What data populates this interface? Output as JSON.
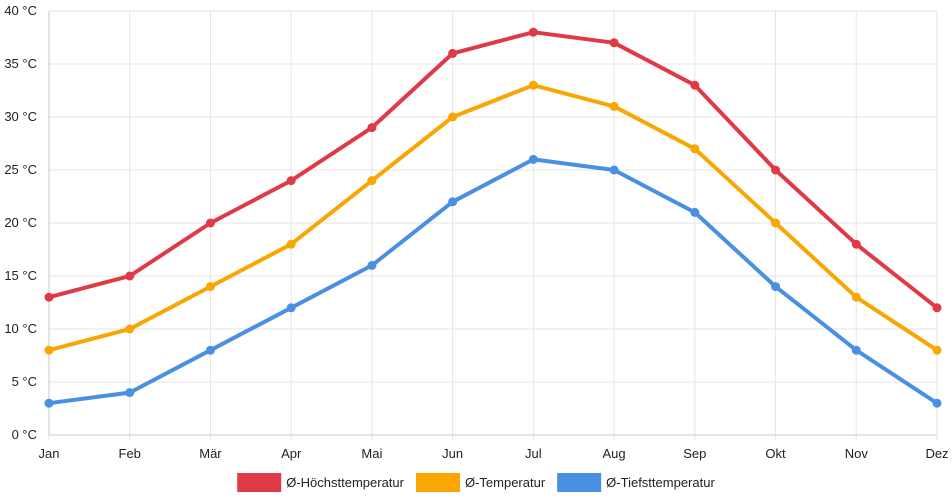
{
  "chart_data": {
    "type": "line",
    "title": "",
    "xlabel": "",
    "ylabel": "",
    "categories": [
      "Jan",
      "Feb",
      "Mär",
      "Apr",
      "Mai",
      "Jun",
      "Jul",
      "Aug",
      "Sep",
      "Okt",
      "Nov",
      "Dez"
    ],
    "ylim": [
      0,
      40
    ],
    "ytick_step": 5,
    "ytick_labels": [
      "0 °C",
      "5 °C",
      "10 °C",
      "15 °C",
      "20 °C",
      "25 °C",
      "30 °C",
      "35 °C",
      "40 °C"
    ],
    "grid": true,
    "legend_position": "bottom-center",
    "series": [
      {
        "name": "Ø-Höchsttemperatur",
        "color": "#e03a47",
        "values": [
          13,
          15,
          20,
          24,
          29,
          36,
          38,
          37,
          33,
          25,
          18,
          12
        ]
      },
      {
        "name": "Ø-Temperatur",
        "color": "#f9a603",
        "values": [
          8,
          10,
          14,
          18,
          24,
          30,
          33,
          31,
          27,
          20,
          13,
          8
        ]
      },
      {
        "name": "Ø-Tiefsttemperatur",
        "color": "#4a90e2",
        "values": [
          3,
          4,
          8,
          12,
          16,
          22,
          26,
          25,
          21,
          14,
          8,
          3
        ]
      }
    ]
  }
}
